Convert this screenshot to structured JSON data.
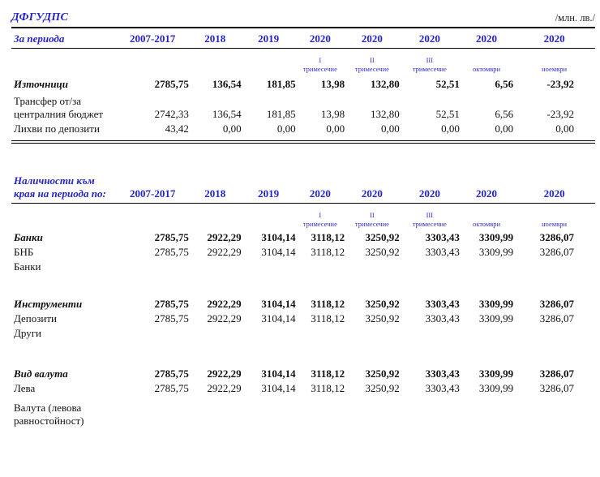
{
  "header": {
    "title": "ДФГУДПС",
    "unit": "/млн. лв./"
  },
  "colors": {
    "header_blue": "#2424cc",
    "text_black": "#111111"
  },
  "table1": {
    "period_label": "За периода",
    "years": [
      "2007-2017",
      "2018",
      "2019",
      "2020",
      "2020",
      "2020",
      "2020",
      "2020"
    ],
    "subheaders": [
      [],
      [],
      [],
      [
        "I",
        "тримесечие"
      ],
      [
        "II",
        "тримесечие"
      ],
      [
        "III",
        "тримесечие"
      ],
      [
        "октомври"
      ],
      [
        "ноември"
      ]
    ],
    "rows": [
      {
        "label": "Източници",
        "bold": true,
        "gap_before": 6,
        "values": [
          "2785,75",
          "136,54",
          "181,85",
          "13,98",
          "132,80",
          "52,51",
          "6,56",
          "-23,92"
        ]
      },
      {
        "label": "Трансфер от/за централния бюджет",
        "bold": false,
        "gap_before": 5,
        "values": [
          "2742,33",
          "136,54",
          "181,85",
          "13,98",
          "132,80",
          "52,51",
          "6,56",
          "-23,92"
        ]
      },
      {
        "label": "Лихви по депозити",
        "bold": false,
        "values": [
          "43,42",
          "0,00",
          "0,00",
          "0,00",
          "0,00",
          "0,00",
          "0,00",
          "0,00"
        ]
      }
    ]
  },
  "table2": {
    "period_label": "Наличности към края на периода по:",
    "years": [
      "2007-2017",
      "2018",
      "2019",
      "2020",
      "2020",
      "2020",
      "2020",
      "2020"
    ],
    "subheaders": [
      [],
      [],
      [],
      [
        "I",
        "тримесечие"
      ],
      [
        "II",
        "тримесечие"
      ],
      [
        "III",
        "тримесечие"
      ],
      [
        "октомври"
      ],
      [
        "ноември"
      ]
    ],
    "rows": [
      {
        "label": "Банки",
        "bold": true,
        "gap_before": 4,
        "values": [
          "2785,75",
          "2922,29",
          "3104,14",
          "3118,12",
          "3250,92",
          "3303,43",
          "3309,99",
          "3286,07"
        ]
      },
      {
        "label": "БНБ",
        "bold": false,
        "values": [
          "2785,75",
          "2922,29",
          "3104,14",
          "3118,12",
          "3250,92",
          "3303,43",
          "3309,99",
          "3286,07"
        ]
      },
      {
        "label": "Банки",
        "bold": false,
        "values": [
          "",
          "",
          "",
          "",
          "",
          "",
          "",
          ""
        ]
      },
      {
        "spacer": 28
      },
      {
        "label": "Инструменти",
        "bold": true,
        "values": [
          "2785,75",
          "2922,29",
          "3104,14",
          "3118,12",
          "3250,92",
          "3303,43",
          "3309,99",
          "3286,07"
        ]
      },
      {
        "label": "Депозити",
        "bold": false,
        "values": [
          "2785,75",
          "2922,29",
          "3104,14",
          "3118,12",
          "3250,92",
          "3303,43",
          "3309,99",
          "3286,07"
        ]
      },
      {
        "label": "Други",
        "bold": false,
        "values": [
          "",
          "",
          "",
          "",
          "",
          "",
          "",
          ""
        ]
      },
      {
        "spacer": 32
      },
      {
        "label": "Вид валута",
        "bold": true,
        "values": [
          "2785,75",
          "2922,29",
          "3104,14",
          "3118,12",
          "3250,92",
          "3303,43",
          "3309,99",
          "3286,07"
        ]
      },
      {
        "label": "Лева",
        "bold": false,
        "values": [
          "2785,75",
          "2922,29",
          "3104,14",
          "3118,12",
          "3250,92",
          "3303,43",
          "3309,99",
          "3286,07"
        ]
      },
      {
        "label": "Валута (левова равностойност)",
        "bold": false,
        "gap_before": 8,
        "values": [
          "",
          "",
          "",
          "",
          "",
          "",
          "",
          ""
        ]
      }
    ]
  }
}
